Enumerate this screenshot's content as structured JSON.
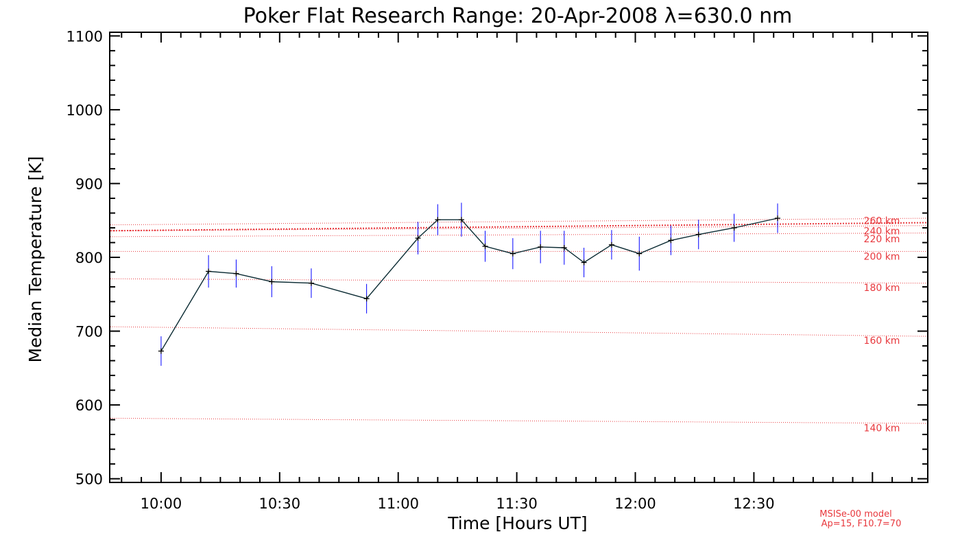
{
  "chart_data": {
    "type": "line",
    "title": "Poker Flat Research Range: 20-Apr-2008 λ=630.0 nm",
    "xlabel": "Time [Hours UT]",
    "ylabel": "Median Temperature [K]",
    "xlim": [
      "09:47",
      "13:14"
    ],
    "ylim": [
      495,
      1105
    ],
    "x_tick_labels": [
      "10:00",
      "10:30",
      "11:00",
      "11:30",
      "12:00",
      "12:30"
    ],
    "y_tick_labels": [
      "500",
      "600",
      "700",
      "800",
      "900",
      "1000",
      "1100"
    ],
    "series": [
      {
        "color": "#000000",
        "error_color": "#0000ff",
        "points": [
          {
            "x": "10:00",
            "y": 673,
            "err": 20
          },
          {
            "x": "10:12",
            "y": 781,
            "err": 22
          },
          {
            "x": "10:19",
            "y": 778,
            "err": 19
          },
          {
            "x": "10:28",
            "y": 767,
            "err": 21
          },
          {
            "x": "10:38",
            "y": 765,
            "err": 20
          },
          {
            "x": "10:52",
            "y": 744,
            "err": 20
          },
          {
            "x": "11:05",
            "y": 826,
            "err": 22
          },
          {
            "x": "11:10",
            "y": 851,
            "err": 21
          },
          {
            "x": "11:16",
            "y": 851,
            "err": 23
          },
          {
            "x": "11:22",
            "y": 815,
            "err": 21
          },
          {
            "x": "11:29",
            "y": 805,
            "err": 21
          },
          {
            "x": "11:36",
            "y": 814,
            "err": 22
          },
          {
            "x": "11:42",
            "y": 813,
            "err": 23
          },
          {
            "x": "11:47",
            "y": 793,
            "err": 20
          },
          {
            "x": "11:54",
            "y": 817,
            "err": 20
          },
          {
            "x": "12:01",
            "y": 805,
            "err": 23
          },
          {
            "x": "12:09",
            "y": 823,
            "err": 20
          },
          {
            "x": "12:16",
            "y": 831,
            "err": 20
          },
          {
            "x": "12:25",
            "y": 840,
            "err": 19
          },
          {
            "x": "12:36",
            "y": 853,
            "err": 20
          }
        ]
      }
    ],
    "model_lines": [
      {
        "name": "140 km",
        "y_start": 582,
        "y_end": 575
      },
      {
        "name": "160 km",
        "y_start": 706,
        "y_end": 693
      },
      {
        "name": "180 km",
        "y_start": 771,
        "y_end": 765
      },
      {
        "name": "200 km",
        "y_start": 808,
        "y_end": 808
      },
      {
        "name": "220 km",
        "y_start": 828,
        "y_end": 833
      },
      {
        "name": "240 km",
        "y_start": 836,
        "y_end": 843
      },
      {
        "name": "260 km",
        "y_start": 844,
        "y_end": 853
      },
      {
        "name": "",
        "y_start": 836,
        "y_end": 847,
        "bold": true
      }
    ],
    "model_color": "#e8383d",
    "model_note": [
      "MSISe-00 model",
      "Ap=15, F10.7=70"
    ],
    "grid": false,
    "legend": "none"
  }
}
